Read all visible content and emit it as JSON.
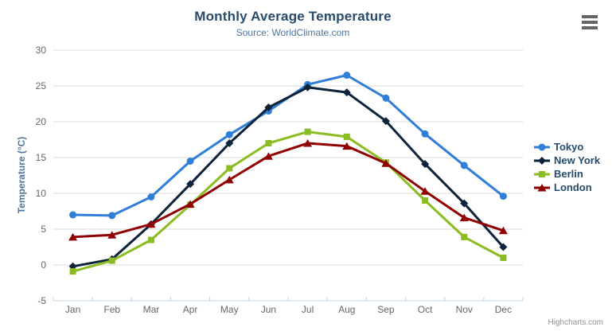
{
  "chart": {
    "credits": "Highcharts.com"
  },
  "chart_data": {
    "type": "line",
    "title": "Monthly Average Temperature",
    "subtitle": "Source: WorldClimate.com",
    "xlabel": "",
    "ylabel": "Temperature (°C)",
    "categories": [
      "Jan",
      "Feb",
      "Mar",
      "Apr",
      "May",
      "Jun",
      "Jul",
      "Aug",
      "Sep",
      "Oct",
      "Nov",
      "Dec"
    ],
    "ylim": [
      -5,
      30
    ],
    "ytick_step": 5,
    "grid": true,
    "legend_position": "right",
    "series": [
      {
        "name": "Tokyo",
        "color": "#2f7ed8",
        "marker": "circle",
        "values": [
          7.0,
          6.9,
          9.5,
          14.5,
          18.2,
          21.5,
          25.2,
          26.5,
          23.3,
          18.3,
          13.9,
          9.6
        ]
      },
      {
        "name": "New York",
        "color": "#0d233a",
        "marker": "diamond",
        "values": [
          -0.2,
          0.8,
          5.7,
          11.3,
          17.0,
          22.0,
          24.8,
          24.1,
          20.1,
          14.1,
          8.6,
          2.5
        ]
      },
      {
        "name": "Berlin",
        "color": "#8bbc21",
        "marker": "square",
        "values": [
          -0.9,
          0.6,
          3.5,
          8.4,
          13.5,
          17.0,
          18.6,
          17.9,
          14.3,
          9.0,
          3.9,
          1.0
        ]
      },
      {
        "name": "London",
        "color": "#910000",
        "marker": "triangle",
        "values": [
          3.9,
          4.2,
          5.7,
          8.5,
          11.9,
          15.2,
          17.0,
          16.6,
          14.2,
          10.3,
          6.6,
          4.8
        ]
      }
    ]
  },
  "colors": {
    "title": "#274b6d",
    "subtitle": "#4d759e",
    "axis_title": "#4d759e",
    "tick_label": "#666666",
    "grid": "#d8d8d8",
    "axis_line": "#c0d0e0",
    "legend_text": "#274b6d",
    "credits": "#909090",
    "menu_icon": "#666666"
  }
}
